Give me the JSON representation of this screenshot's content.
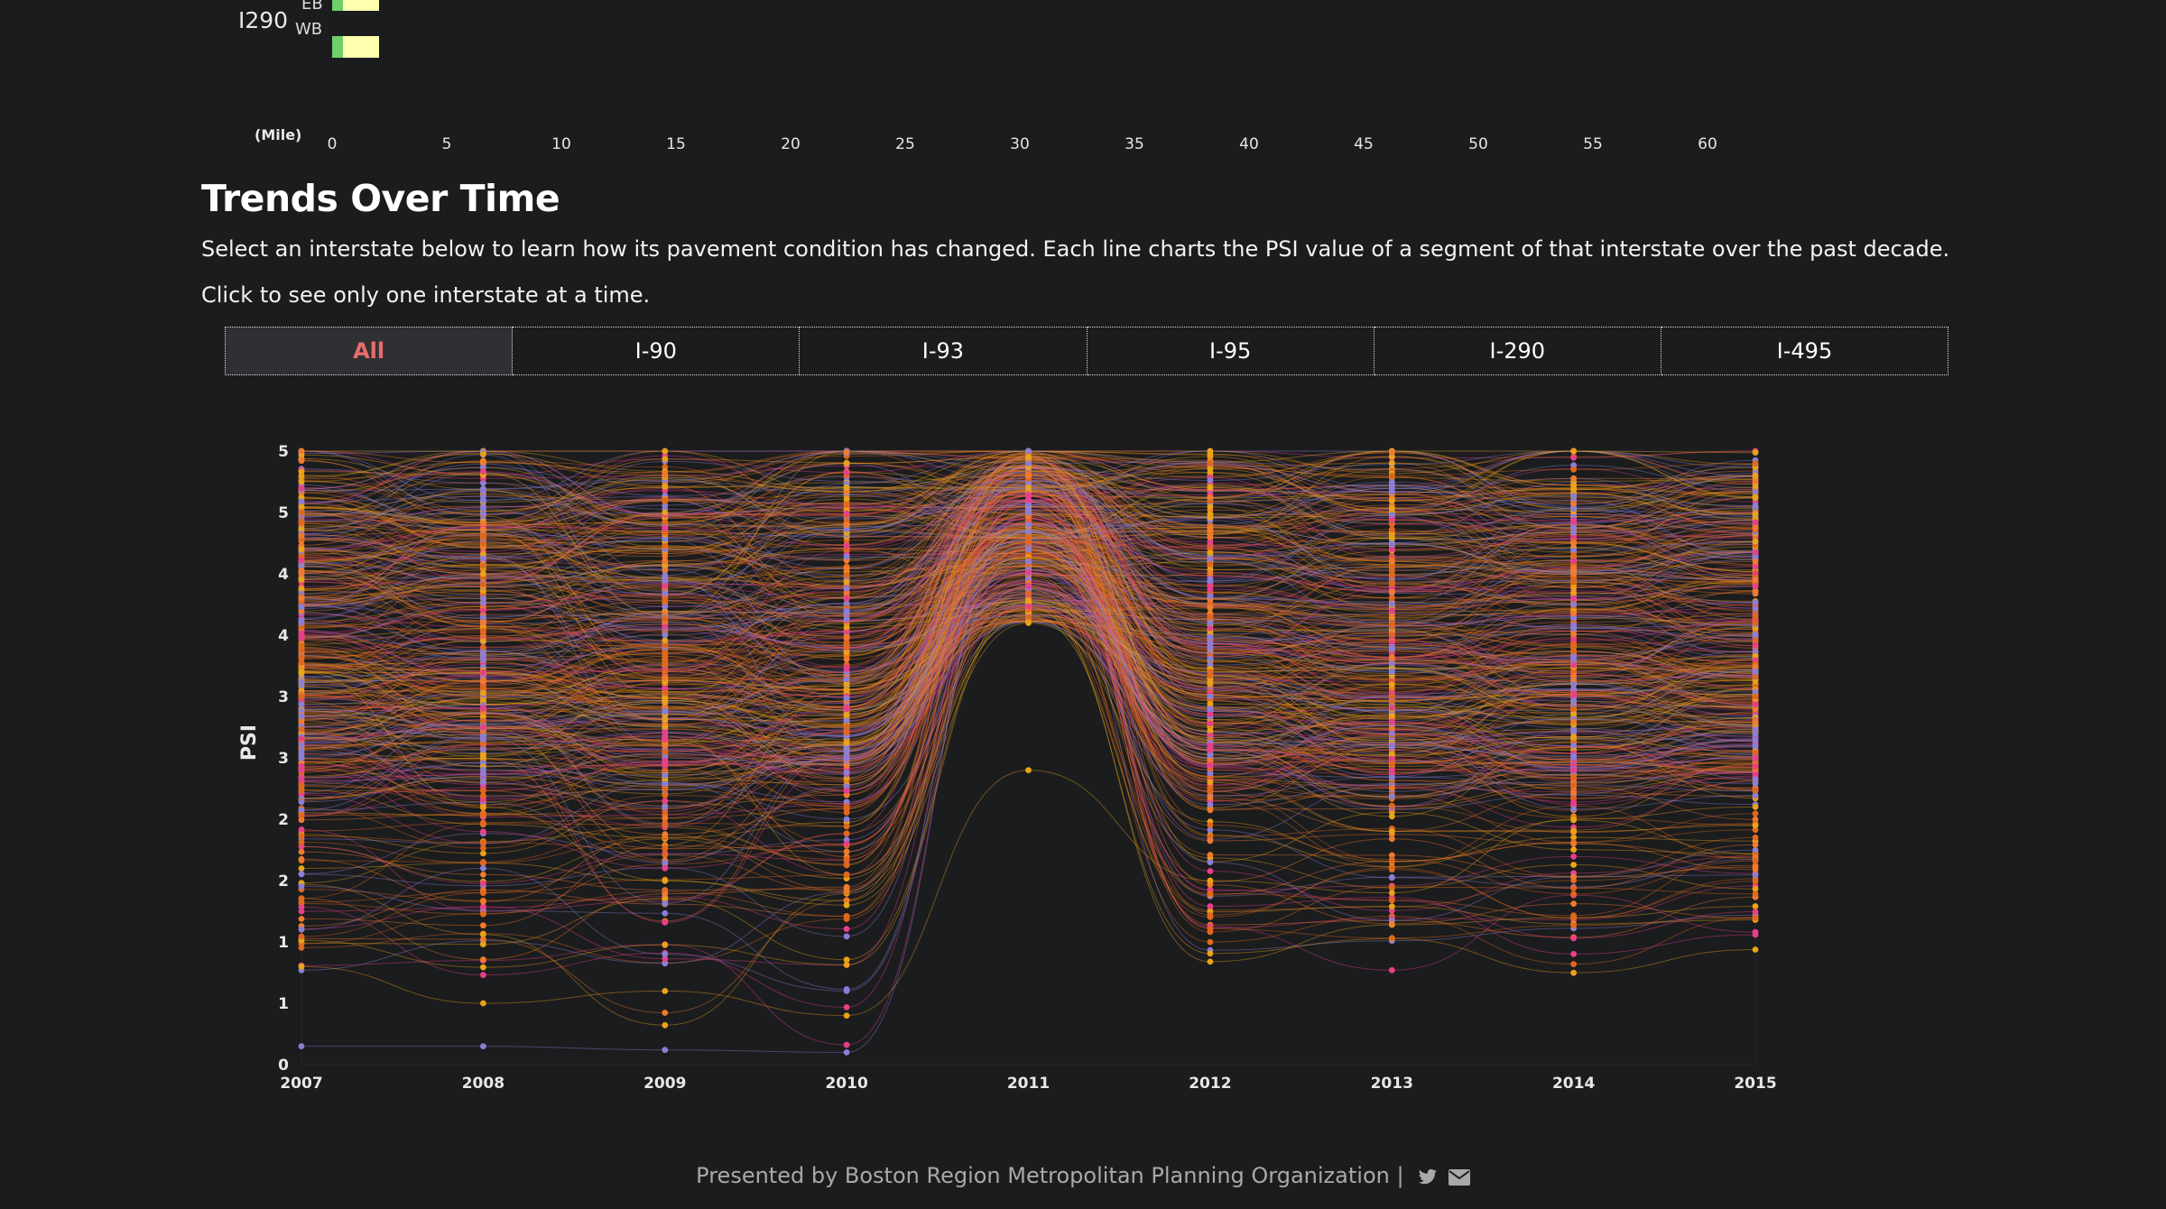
{
  "top_chart": {
    "route": "I290",
    "directions": [
      "EB",
      "WB"
    ],
    "mile_unit": "(Mile)",
    "mile_ticks": [
      "0",
      "5",
      "10",
      "15",
      "20",
      "25",
      "30",
      "35",
      "40",
      "45",
      "50",
      "55",
      "60"
    ]
  },
  "section": {
    "title": "Trends Over Time",
    "description": "Select an interstate below to learn how its pavement condition has changed. Each line charts the PSI value of a segment of that interstate over the past decade.",
    "hint": "Click to see only one interstate at a time."
  },
  "tabs": [
    {
      "label": "All",
      "active": true
    },
    {
      "label": "I-90",
      "active": false
    },
    {
      "label": "I-93",
      "active": false
    },
    {
      "label": "I-95",
      "active": false
    },
    {
      "label": "I-290",
      "active": false
    },
    {
      "label": "I-495",
      "active": false
    }
  ],
  "chart_data": {
    "type": "line",
    "title": "",
    "xlabel": "",
    "ylabel": "PSI",
    "x": [
      2007,
      2008,
      2009,
      2010,
      2011,
      2012,
      2013,
      2014,
      2015
    ],
    "xlim": [
      2007,
      2015
    ],
    "ylim": [
      0,
      5
    ],
    "ytick_labels": [
      "0",
      "1",
      "1",
      "2",
      "2",
      "3",
      "3",
      "4",
      "4",
      "5",
      "5"
    ],
    "grid": false,
    "legend": "none",
    "colors": {
      "I-90": "#e8a317",
      "I-93": "#e0681c",
      "I-95": "#8a7fd6",
      "I-290": "#e83f8a",
      "I-495": "#f07b2e"
    },
    "sample_segments": [
      {
        "series": "I-93",
        "values": [
          4.5,
          4.3,
          4.6,
          4.9,
          4.95,
          4.9,
          4.8,
          4.85,
          4.9
        ]
      },
      {
        "series": "I-90",
        "values": [
          4.2,
          4.0,
          4.5,
          4.9,
          4.95,
          4.7,
          4.6,
          4.7,
          4.8
        ]
      },
      {
        "series": "I-495",
        "values": [
          3.8,
          3.6,
          4.1,
          4.4,
          4.8,
          4.3,
          4.1,
          4.0,
          4.1
        ]
      },
      {
        "series": "I-290",
        "values": [
          3.5,
          3.7,
          3.9,
          3.8,
          4.6,
          3.9,
          3.7,
          3.8,
          3.9
        ]
      },
      {
        "series": "I-95",
        "values": [
          3.6,
          3.3,
          3.5,
          3.7,
          4.4,
          3.6,
          3.4,
          3.3,
          3.5
        ]
      },
      {
        "series": "I-93",
        "values": [
          3.0,
          2.8,
          3.2,
          3.4,
          4.3,
          3.2,
          3.0,
          2.9,
          3.0
        ]
      },
      {
        "series": "I-95",
        "values": [
          2.6,
          2.3,
          2.1,
          2.5,
          4.1,
          2.9,
          2.6,
          2.5,
          2.6
        ]
      },
      {
        "series": "I-290",
        "values": [
          2.4,
          1.9,
          1.6,
          1.8,
          3.9,
          2.6,
          2.4,
          2.4,
          2.5
        ]
      },
      {
        "series": "I-90",
        "values": [
          3.2,
          2.1,
          1.5,
          1.3,
          3.6,
          2.3,
          1.9,
          1.9,
          1.95
        ]
      },
      {
        "series": "I-95",
        "values": [
          1.1,
          1.6,
          0.9,
          0.6,
          4.2,
          3.0,
          2.7,
          2.6,
          2.7
        ]
      },
      {
        "series": "I-95",
        "values": [
          0.15,
          0.15,
          0.12,
          0.1,
          4.5,
          3.4,
          3.2,
          3.1,
          3.2
        ]
      },
      {
        "series": "I-90",
        "values": [
          0.8,
          0.5,
          0.6,
          0.4,
          2.4,
          1.5,
          1.4,
          2.0,
          2.1
        ]
      }
    ]
  },
  "footer": {
    "text": "Presented by Boston Region Metropolitan Planning Organization |",
    "icons": [
      "twitter-icon",
      "mail-icon"
    ]
  }
}
